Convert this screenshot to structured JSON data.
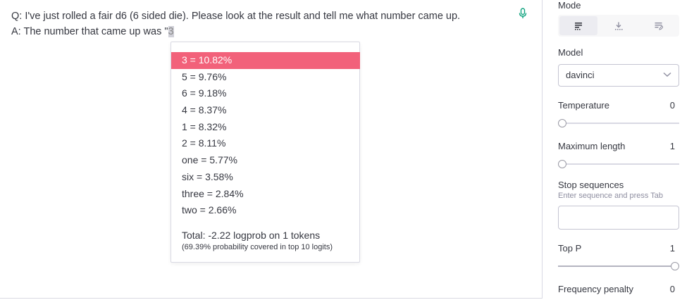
{
  "prompt": {
    "line1": "Q: I've just rolled a fair d6 (6 sided die). Please look at the result and tell me what number came up.",
    "line2_prefix": "A: The number that came up was \"",
    "line2_token": "3"
  },
  "probabilities": {
    "items": [
      {
        "label": "3 = 10.82%"
      },
      {
        "label": "5 = 9.76%"
      },
      {
        "label": "6 = 9.18%"
      },
      {
        "label": "4 = 8.37%"
      },
      {
        "label": "1 = 8.32%"
      },
      {
        "label": "2 = 8.11%"
      },
      {
        "label": "one = 5.77%"
      },
      {
        "label": "six = 3.58%"
      },
      {
        "label": "three = 2.84%"
      },
      {
        "label": "two = 2.66%"
      }
    ],
    "selected_index": 0,
    "total": "Total: -2.22 logprob on 1 tokens",
    "covered": "(69.39% probability covered in top 10 logits)"
  },
  "sidebar": {
    "mode_label": "Mode",
    "mode_options": [
      "complete-icon",
      "insert-icon",
      "edit-icon"
    ],
    "model_label": "Model",
    "model_value": "davinci",
    "temperature_label": "Temperature",
    "temperature_value": "0",
    "temperature_fraction": 0,
    "max_length_label": "Maximum length",
    "max_length_value": "1",
    "max_length_fraction": 0,
    "stop_label": "Stop sequences",
    "stop_hint": "Enter sequence and press Tab",
    "top_p_label": "Top P",
    "top_p_value": "1",
    "top_p_fraction": 1,
    "freq_label": "Frequency penalty",
    "freq_value": "0"
  },
  "colors": {
    "selected_row": "#f2617a",
    "mic": "#10a37f"
  }
}
